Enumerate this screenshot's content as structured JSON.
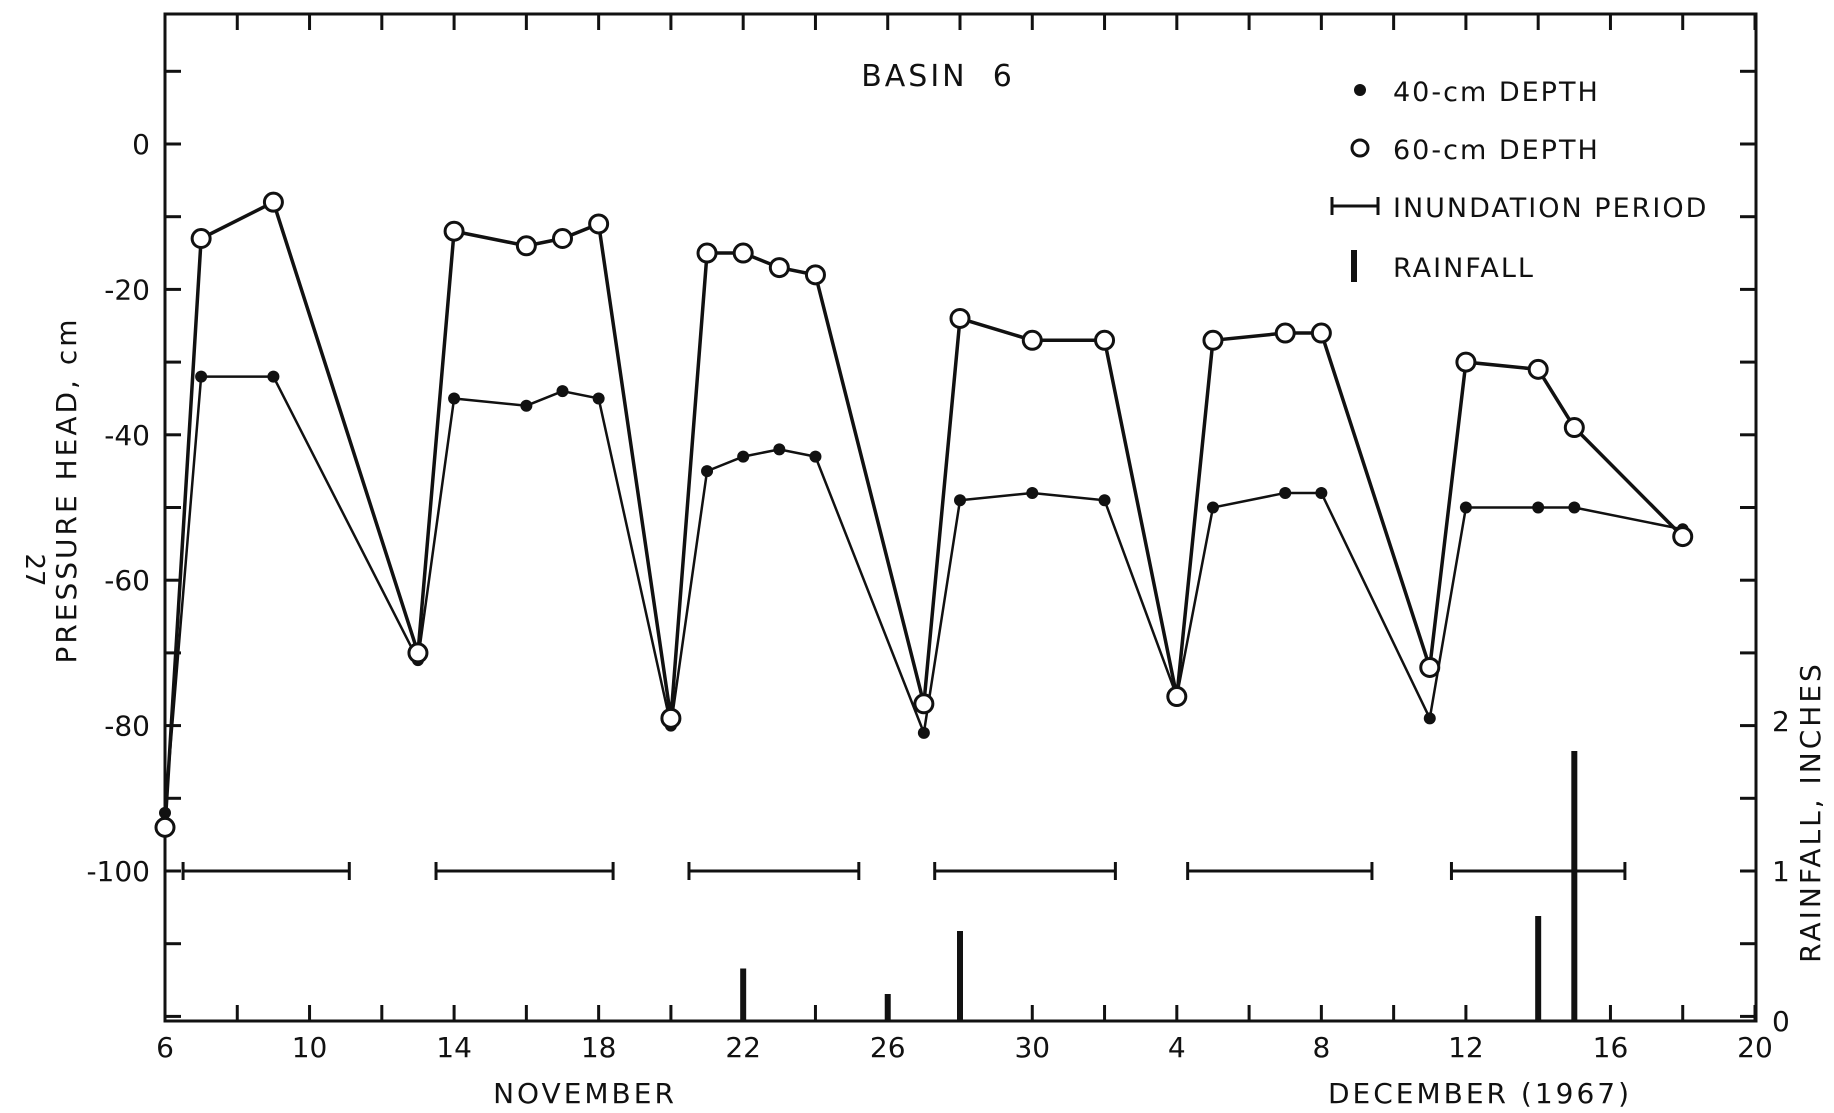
{
  "chart_data": {
    "type": "line",
    "title": "BASIN  6",
    "side_page_number": "27",
    "ylabel": "PRESSURE HEAD, cm",
    "y2label": "RAINFALL, INCHES",
    "xlabel_left": "NOVEMBER",
    "xlabel_right": "DECEMBER (1967)",
    "x_day_range": [
      6,
      50
    ],
    "ylim": [
      -120,
      20
    ],
    "y_ticks": [
      0,
      -20,
      -40,
      -60,
      -80,
      -100
    ],
    "y2_ticks": [
      0,
      1,
      2
    ],
    "y2lim": [
      0,
      2.8
    ],
    "x_ticks": [
      {
        "day": 6,
        "label": "6"
      },
      {
        "day": 10,
        "label": "10"
      },
      {
        "day": 14,
        "label": "14"
      },
      {
        "day": 18,
        "label": "18"
      },
      {
        "day": 22,
        "label": "22"
      },
      {
        "day": 26,
        "label": "26"
      },
      {
        "day": 30,
        "label": "30"
      },
      {
        "day": 34,
        "label": "4"
      },
      {
        "day": 38,
        "label": "8"
      },
      {
        "day": 42,
        "label": "12"
      },
      {
        "day": 46,
        "label": "16"
      },
      {
        "day": 50,
        "label": "20"
      }
    ],
    "legend": [
      {
        "marker": "filled-dot",
        "label": "40-cm DEPTH"
      },
      {
        "marker": "open-circle",
        "label": "60-cm DEPTH"
      },
      {
        "marker": "bracket",
        "label": "INUNDATION PERIOD"
      },
      {
        "marker": "bar",
        "label": "RAINFALL"
      }
    ],
    "series": [
      {
        "name": "40-cm DEPTH",
        "marker": "filled",
        "points": [
          [
            6,
            -92
          ],
          [
            7,
            -32
          ],
          [
            9,
            -32
          ],
          [
            13,
            -71
          ],
          [
            14,
            -35
          ],
          [
            16,
            -36
          ],
          [
            17,
            -34
          ],
          [
            18,
            -35
          ],
          [
            20,
            -80
          ],
          [
            21,
            -45
          ],
          [
            22,
            -43
          ],
          [
            23,
            -42
          ],
          [
            24,
            -43
          ],
          [
            27,
            -81
          ],
          [
            28,
            -49
          ],
          [
            30,
            -48
          ],
          [
            32,
            -49
          ],
          [
            34,
            -76
          ],
          [
            35,
            -50
          ],
          [
            37,
            -48
          ],
          [
            38,
            -48
          ],
          [
            41,
            -79
          ],
          [
            42,
            -50
          ],
          [
            44,
            -50
          ],
          [
            45,
            -50
          ],
          [
            48,
            -53
          ]
        ]
      },
      {
        "name": "60-cm DEPTH",
        "marker": "open",
        "points": [
          [
            6,
            -94
          ],
          [
            7,
            -13
          ],
          [
            9,
            -8
          ],
          [
            13,
            -70
          ],
          [
            14,
            -12
          ],
          [
            16,
            -14
          ],
          [
            17,
            -13
          ],
          [
            18,
            -11
          ],
          [
            20,
            -79
          ],
          [
            21,
            -15
          ],
          [
            22,
            -15
          ],
          [
            23,
            -17
          ],
          [
            24,
            -18
          ],
          [
            27,
            -77
          ],
          [
            28,
            -24
          ],
          [
            30,
            -27
          ],
          [
            32,
            -27
          ],
          [
            34,
            -76
          ],
          [
            35,
            -27
          ],
          [
            37,
            -26
          ],
          [
            38,
            -26
          ],
          [
            41,
            -72
          ],
          [
            42,
            -30
          ],
          [
            44,
            -31
          ],
          [
            45,
            -39
          ],
          [
            48,
            -54
          ]
        ]
      }
    ],
    "inundation_periods": [
      [
        6.5,
        11.1
      ],
      [
        13.5,
        18.4
      ],
      [
        20.5,
        25.2
      ],
      [
        27.3,
        32.3
      ],
      [
        34.3,
        39.4
      ],
      [
        41.6,
        46.4
      ]
    ],
    "rainfall_inches": [
      [
        22,
        0.35
      ],
      [
        26,
        0.18
      ],
      [
        28,
        0.6
      ],
      [
        44,
        0.7
      ],
      [
        45,
        1.8
      ]
    ]
  }
}
